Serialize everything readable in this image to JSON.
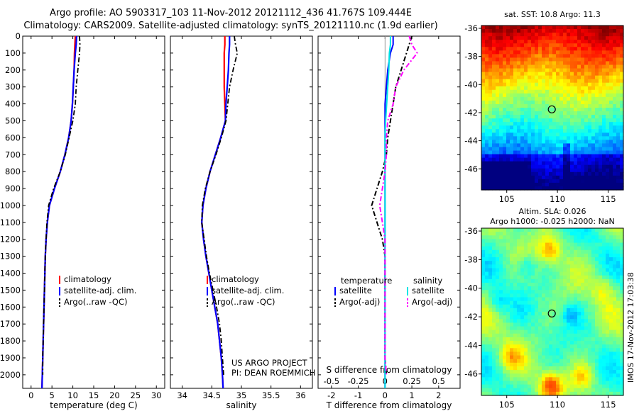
{
  "titles": {
    "line1": "Argo profile: AO 5903317_103 11-Nov-2012 20121112_436 41.767S 109.444E",
    "line2": "Climatology: CARS2009. Satellite-adjusted climatology: synTS_20121110.nc (1.9d earlier)"
  },
  "colors": {
    "climatology": "#ff0000",
    "satellite": "#0000ff",
    "argo": "#000000",
    "salinity_satellite": "#00e5e5",
    "salinity_argo": "#ff00ff"
  },
  "depth_ticks": [
    0,
    100,
    200,
    300,
    400,
    500,
    600,
    700,
    800,
    900,
    1000,
    1100,
    1200,
    1300,
    1400,
    1500,
    1600,
    1700,
    1800,
    1900,
    2000
  ],
  "ylim": [
    0,
    2080
  ],
  "chart_data": [
    {
      "type": "line",
      "xlabel": "temperature (deg C)",
      "ylabel": "",
      "xlim": [
        -2,
        32
      ],
      "ylim": [
        0,
        2080
      ],
      "xticks": [
        0,
        5,
        10,
        15,
        20,
        25,
        30
      ],
      "legend": [
        "climatology",
        "satellite-adj. clim.",
        "Argo(..raw -QC)"
      ],
      "depth": [
        0,
        50,
        100,
        200,
        300,
        400,
        500,
        600,
        700,
        800,
        900,
        1000,
        1100,
        1200,
        1300,
        1400,
        1500,
        1600,
        1700,
        1800,
        1900,
        2000,
        2080
      ],
      "series": [
        {
          "name": "climatology",
          "values": [
            10.6,
            10.5,
            10.4,
            10.3,
            10.1,
            9.9,
            9.6,
            9.0,
            8.1,
            7.0,
            5.6,
            4.4,
            3.9,
            3.6,
            3.4,
            3.3,
            3.2,
            3.1,
            3.0,
            2.9,
            2.8,
            2.7,
            2.6
          ]
        },
        {
          "name": "satellite-adj. clim.",
          "values": [
            10.9,
            10.8,
            10.6,
            10.3,
            10.1,
            9.9,
            9.6,
            9.0,
            8.1,
            7.0,
            5.6,
            4.4,
            3.9,
            3.6,
            3.4,
            3.3,
            3.2,
            3.1,
            3.0,
            2.9,
            2.8,
            2.7,
            2.6
          ]
        },
        {
          "name": "Argo(..raw -QC)",
          "values": [
            11.6,
            11.7,
            11.6,
            11.2,
            10.8,
            10.6,
            10.0,
            9.1,
            8.2,
            7.0,
            5.4,
            4.2,
            3.8,
            3.6,
            3.4,
            3.3,
            3.2,
            3.1,
            3.0,
            2.9,
            2.8,
            2.8,
            null
          ]
        }
      ]
    },
    {
      "type": "line",
      "xlabel": "salinity",
      "ylabel": "",
      "xlim": [
        33.8,
        36.2
      ],
      "ylim": [
        0,
        2080
      ],
      "xticks": [
        34,
        34.5,
        35,
        35.5,
        36
      ],
      "legend": [
        "climatology",
        "satellite-adj. clim.",
        "Argo(..raw -QC)"
      ],
      "annotations": [
        "US ARGO PROJECT",
        "PI: DEAN ROEMMICH"
      ],
      "depth": [
        0,
        50,
        100,
        200,
        300,
        400,
        500,
        600,
        700,
        800,
        900,
        1000,
        1100,
        1200,
        1300,
        1400,
        1500,
        1600,
        1700,
        1800,
        1900,
        2000,
        2080
      ],
      "series": [
        {
          "name": "climatology",
          "values": [
            34.72,
            34.72,
            34.71,
            34.71,
            34.71,
            34.72,
            34.73,
            34.65,
            34.56,
            34.47,
            34.4,
            34.35,
            34.33,
            34.36,
            34.4,
            34.45,
            34.5,
            34.55,
            34.6,
            34.63,
            34.66,
            34.68,
            34.69
          ]
        },
        {
          "name": "satellite-adj. clim.",
          "values": [
            34.8,
            34.8,
            34.79,
            34.78,
            34.76,
            34.74,
            34.73,
            34.65,
            34.56,
            34.47,
            34.4,
            34.35,
            34.33,
            34.36,
            34.4,
            34.45,
            34.5,
            34.55,
            34.6,
            34.63,
            34.66,
            34.68,
            34.69
          ]
        },
        {
          "name": "Argo(..raw -QC)",
          "values": [
            34.88,
            34.9,
            34.93,
            34.86,
            34.8,
            34.77,
            34.74,
            34.66,
            34.57,
            34.47,
            34.39,
            34.34,
            34.33,
            34.37,
            34.41,
            34.46,
            34.52,
            34.58,
            34.63,
            34.66,
            34.68,
            34.7,
            null
          ]
        }
      ]
    },
    {
      "type": "line",
      "xlabel": "T difference from climatology",
      "xlabel_top": "S difference from climatology",
      "ylabel": "",
      "xlim": [
        -2.5,
        2.8
      ],
      "ylim": [
        0,
        2080
      ],
      "xticks": [
        -2,
        -1,
        0,
        1,
        2
      ],
      "xticks_top": [
        "-0.5",
        "-0.25",
        "0",
        "0.25",
        "0.5"
      ],
      "legend_groups": [
        {
          "title": "temperature",
          "entries": [
            "satellite",
            "Argo(-adj)"
          ]
        },
        {
          "title": "salinity",
          "entries": [
            "satellite",
            "Argo(-adj)"
          ]
        }
      ],
      "depth": [
        0,
        50,
        100,
        200,
        300,
        400,
        500,
        600,
        700,
        800,
        900,
        1000,
        1100,
        1200,
        1300,
        1400,
        1500,
        1600,
        1700,
        1800,
        1900,
        2000,
        2080
      ],
      "series": [
        {
          "name": "temperature satellite",
          "values": [
            0.3,
            0.3,
            0.2,
            0.1,
            0.05,
            0,
            0,
            0,
            0,
            0,
            0,
            0,
            0,
            0,
            0,
            0,
            0,
            0,
            0,
            0,
            0,
            0,
            0
          ]
        },
        {
          "name": "temperature Argo(-adj)",
          "values": [
            1.0,
            0.9,
            0.8,
            0.6,
            0.4,
            0.3,
            0.2,
            0.1,
            0.05,
            -0.1,
            -0.3,
            -0.5,
            -0.3,
            -0.1,
            0,
            0,
            0,
            0,
            0,
            0,
            0,
            0.05,
            null
          ]
        },
        {
          "name": "salinity satellite",
          "values": [
            0.2,
            0.2,
            0.16,
            0.14,
            0.1,
            0.06,
            0.02,
            0,
            0,
            0,
            0,
            0,
            0,
            0,
            0,
            0,
            0,
            0,
            0,
            0,
            0,
            0,
            0
          ]
        },
        {
          "name": "salinity Argo(-adj)",
          "values": [
            0.9,
            1.0,
            1.2,
            0.7,
            0.4,
            0.3,
            0.1,
            0.05,
            0.05,
            0,
            -0.1,
            -0.2,
            -0.1,
            0,
            0,
            0,
            0,
            0,
            0,
            0,
            0,
            0.05,
            null
          ]
        }
      ]
    },
    {
      "type": "heatmap",
      "title": "sat. SST: 10.8  Argo: 11.3",
      "xlim": [
        102.5,
        116.5
      ],
      "ylim": [
        -47.5,
        -35.8
      ],
      "xticks": [
        105,
        110,
        115
      ],
      "yticks": [
        -36,
        -38,
        -40,
        -42,
        -44,
        -46
      ],
      "marker": {
        "lon": 109.444,
        "lat": -41.767
      }
    },
    {
      "type": "heatmap",
      "title": "Altim. SLA: 0.026",
      "subtitle": "Argo h1000: -0.025  h2000: NaN",
      "xlim": [
        102.5,
        116.5
      ],
      "ylim": [
        -47.5,
        -35.8
      ],
      "xticks": [
        105,
        110,
        115
      ],
      "yticks": [
        -36,
        -38,
        -40,
        -42,
        -44,
        -46
      ],
      "marker": {
        "lon": 109.444,
        "lat": -41.767
      }
    }
  ],
  "side_label": "IMOS 17-Nov-2012 17:03:38"
}
